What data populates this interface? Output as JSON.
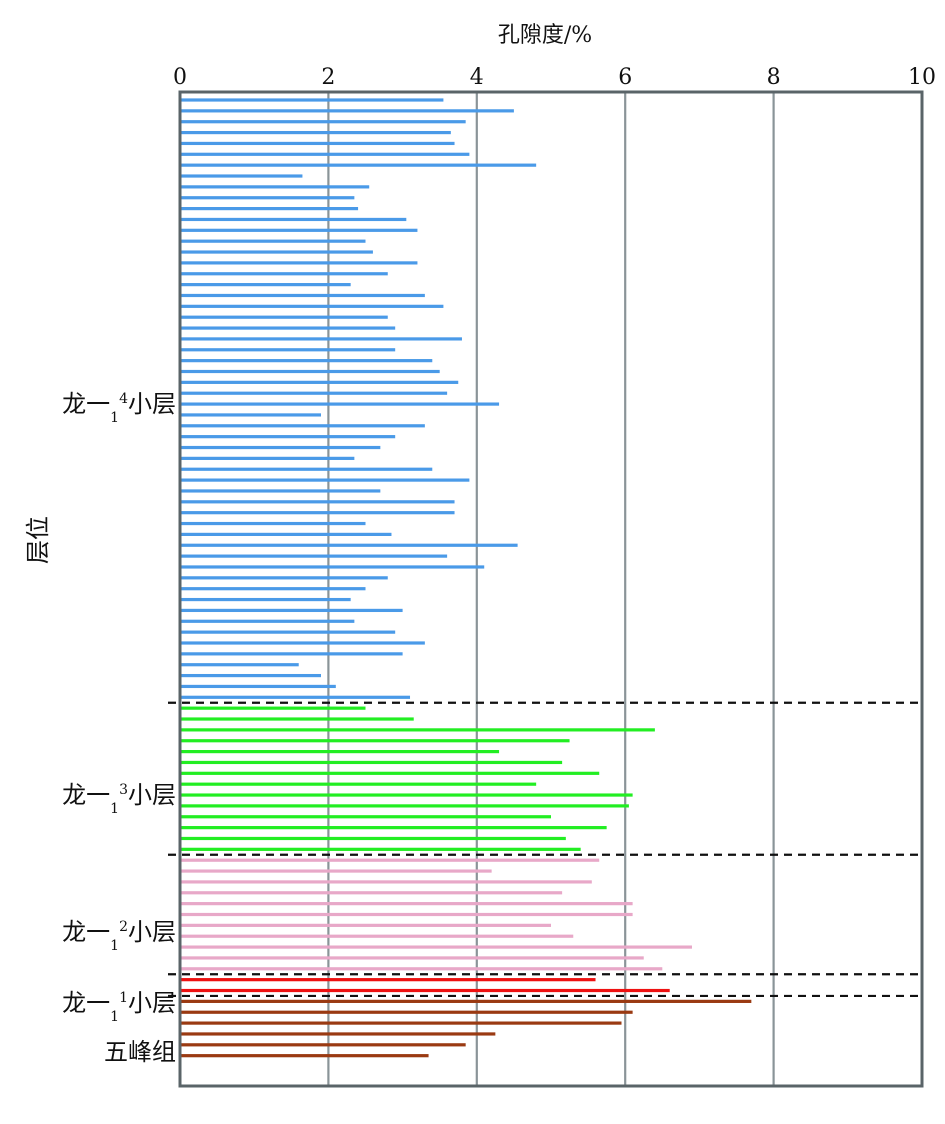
{
  "chart_data": {
    "type": "bar",
    "orientation": "horizontal",
    "xlabel": "孔隙度/%",
    "ylabel": "层位",
    "xlim": [
      0,
      10
    ],
    "xticks": [
      "0",
      "2",
      "4",
      "6",
      "8",
      "10"
    ],
    "grid": true,
    "x_axis_position": "top",
    "groups": [
      {
        "main": "龙一",
        "sub": "1",
        "sup": "4",
        "suffix": "小层",
        "color": "#4a9ae8",
        "values": [
          3.55,
          4.5,
          3.85,
          3.65,
          3.7,
          3.9,
          4.8,
          1.65,
          2.55,
          2.35,
          2.4,
          3.05,
          3.2,
          2.5,
          2.6,
          3.2,
          2.8,
          2.3,
          3.3,
          3.55,
          2.8,
          2.9,
          3.8,
          2.9,
          3.4,
          3.5,
          3.75,
          3.6,
          4.3,
          1.9,
          3.3,
          2.9,
          2.7,
          2.35,
          3.4,
          3.9,
          2.7,
          3.7,
          3.7,
          2.5,
          2.85,
          4.55,
          3.6,
          4.1,
          2.8,
          2.5,
          2.3,
          3.0,
          2.35,
          2.9,
          3.3,
          3.0,
          1.6,
          1.9,
          2.1,
          3.1
        ]
      },
      {
        "main": "龙一",
        "sub": "1",
        "sup": "3",
        "suffix": "小层",
        "color": "#22ee22",
        "values": [
          2.5,
          3.15,
          6.4,
          5.25,
          4.3,
          5.15,
          5.65,
          4.8,
          6.1,
          6.05,
          5.0,
          5.75,
          5.2,
          5.4
        ]
      },
      {
        "main": "龙一",
        "sub": "1",
        "sup": "2",
        "suffix": "小层",
        "color": "#e8a8c8",
        "values": [
          5.65,
          4.2,
          5.55,
          5.15,
          6.1,
          6.1,
          5.0,
          5.3,
          6.9,
          6.25,
          6.5
        ]
      },
      {
        "main": "龙一",
        "sub": "1",
        "sup": "1",
        "suffix": "小层",
        "color": "#ee1111",
        "values": [
          5.6,
          6.6
        ]
      },
      {
        "main": "五峰组",
        "sub": "",
        "sup": "",
        "suffix": "",
        "color": "#9a3a12",
        "values": [
          7.7,
          6.1,
          5.95,
          4.25,
          3.85,
          3.35
        ]
      }
    ]
  }
}
